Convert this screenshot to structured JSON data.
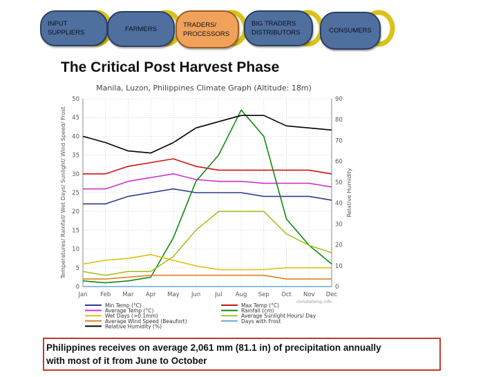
{
  "supply_chain": {
    "nodes": [
      {
        "lines": [
          "INPUT",
          "SUPPLIERS"
        ]
      },
      {
        "lines": [
          "FARMERS"
        ]
      },
      {
        "lines": [
          "TRADERS/",
          "PROCESSORS"
        ]
      },
      {
        "lines": [
          "BIG TRADERS",
          "DISTRIBUTORS"
        ]
      },
      {
        "lines": [
          "CONSUMERS"
        ]
      }
    ],
    "colors": {
      "node": "#4f6f9f",
      "highlight": "#f0a25a",
      "ring": "#d9c21a"
    }
  },
  "slide_title": "The Critical Post Harvest Phase",
  "note": {
    "line1": "Philippines receives on average 2,061 mm (81.1 in) of precipitation annually",
    "line2": "with most of it  from June to October"
  },
  "chart_data": {
    "type": "line",
    "title": "Manila, Luzon, Philippines Climate Graph (Altitude: 18m)",
    "ylabel": "Temperatures/ Rainfall/ Wet Days/ Sunlight/ Wind Speed/ Frost",
    "y2label": "Relative Humidity",
    "credit": "climatetemp.info",
    "ylim": [
      0,
      50
    ],
    "yticks": [
      0,
      5,
      10,
      15,
      20,
      25,
      30,
      35,
      40,
      45,
      50
    ],
    "y2lim": [
      0,
      90
    ],
    "y2ticks": [
      0,
      10,
      20,
      30,
      40,
      50,
      60,
      70,
      80,
      90
    ],
    "categories": [
      "Jan",
      "Feb",
      "Mar",
      "Apr",
      "May",
      "Jun",
      "Jul",
      "Aug",
      "Sep",
      "Oct",
      "Nov",
      "Dec"
    ],
    "series": [
      {
        "name": "Min Temp (°C)",
        "color": "#2e3a8c",
        "axis": "left",
        "values": [
          22,
          22,
          24,
          25,
          26,
          25,
          25,
          25,
          24,
          24,
          24,
          23
        ]
      },
      {
        "name": "Max Temp (°C)",
        "color": "#cc1111",
        "axis": "left",
        "values": [
          30,
          30,
          32,
          33,
          34,
          32,
          31,
          31,
          31,
          31,
          31,
          30
        ]
      },
      {
        "name": "Average Temp (°C)",
        "color": "#cc33cc",
        "axis": "left",
        "values": [
          26,
          26,
          28,
          29,
          30,
          28.5,
          28,
          28,
          27.5,
          27.5,
          27.5,
          26.5
        ]
      },
      {
        "name": "Rainfall (cm)",
        "color": "#118811",
        "axis": "left",
        "values": [
          1.5,
          1,
          1.5,
          2.5,
          13,
          28,
          35,
          47,
          40,
          18,
          11,
          6
        ]
      },
      {
        "name": "Wet Days (>0.1mm)",
        "color": "#e0c010",
        "axis": "left",
        "values": [
          6,
          7,
          7.5,
          8.5,
          7,
          5.5,
          4.5,
          4.5,
          4.5,
          5,
          5,
          5
        ]
      },
      {
        "name": "Average Sunlight Hours/ Day",
        "color": "#a8c020",
        "axis": "left",
        "values": [
          4,
          3,
          4,
          4,
          8,
          15,
          20,
          20,
          20,
          14,
          11,
          9
        ]
      },
      {
        "name": "Average Wind Speed (Beaufort)",
        "color": "#e08020",
        "axis": "left",
        "values": [
          2,
          2,
          2.5,
          3,
          3,
          3,
          3,
          3,
          3,
          2,
          2,
          2
        ]
      },
      {
        "name": "Days with Frost",
        "color": "#66a8e0",
        "axis": "left",
        "values": [
          0,
          0,
          0,
          0,
          0,
          0,
          0,
          0,
          0,
          0,
          0,
          0
        ]
      },
      {
        "name": "Relative Humidity (%)",
        "color": "#000000",
        "axis": "right",
        "values": [
          72,
          69,
          65,
          64,
          69,
          76,
          79,
          82,
          82,
          77,
          76,
          75
        ]
      }
    ]
  }
}
